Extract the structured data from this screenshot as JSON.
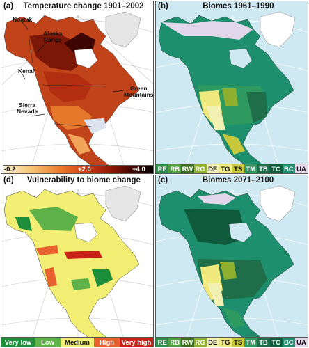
{
  "panels": {
    "a": {
      "letter": "(a)",
      "title": "Temperature change 1901–2002"
    },
    "b": {
      "letter": "(b)",
      "title": "Biomes 1961–1990"
    },
    "d": {
      "letter": "(d)",
      "title": "Vulnerability to biome change"
    },
    "c": {
      "letter": "(c)",
      "title": "Biomes 2071–2100"
    }
  },
  "places": {
    "noatak": "Noatak",
    "alaska_range": "Alaska\nRange",
    "kenai": "Kenai",
    "sierra_nevada": "Sierra\nNevada",
    "green_mountains": "Green\nMountains"
  },
  "temp_scale": {
    "min": "-0.2",
    "mid": "+2.0",
    "max": "+4.0"
  },
  "biome_legend": [
    {
      "code": "RE",
      "color": "#2f8b4a"
    },
    {
      "code": "RB",
      "color": "#4e9e3f"
    },
    {
      "code": "RW",
      "color": "#3d6b1f"
    },
    {
      "code": "RG",
      "color": "#8faf2e"
    },
    {
      "code": "DE",
      "color": "#f3f0b4"
    },
    {
      "code": "TG",
      "color": "#f0ea7e"
    },
    {
      "code": "TS",
      "color": "#c8c83c"
    },
    {
      "code": "TM",
      "color": "#2f9a60"
    },
    {
      "code": "TB",
      "color": "#1f6e49"
    },
    {
      "code": "TC",
      "color": "#0f5a3b"
    },
    {
      "code": "BC",
      "color": "#1d8f6d"
    },
    {
      "code": "UA",
      "color": "#e2d6ea"
    }
  ],
  "vulnerability_legend": [
    {
      "label": "Very low",
      "color": "#1d8f3a"
    },
    {
      "label": "Low",
      "color": "#5fb24a"
    },
    {
      "label": "Medium",
      "color": "#f1ee73"
    },
    {
      "label": "High",
      "color": "#e8622f"
    },
    {
      "label": "Very high",
      "color": "#c92018"
    }
  ],
  "colors": {
    "ocean_b": "#cfe9f2",
    "ocean_a": "#ffffff",
    "greenland": "#e6e6e6",
    "graticule": "#b9b9b9",
    "border": "#222222"
  }
}
